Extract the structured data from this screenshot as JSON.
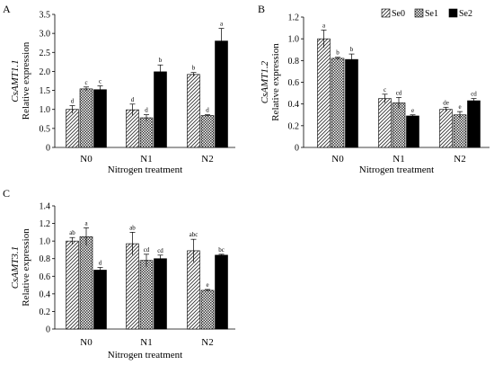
{
  "legend": {
    "items": [
      "Se0",
      "Se1",
      "Se2"
    ]
  },
  "chart_data": [
    {
      "panel": "A",
      "type": "bar",
      "ylabel_gene": "CsAMT1.1",
      "ylabel": "Relative expression",
      "xlabel": "Nitrogen treatment",
      "categories": [
        "N0",
        "N1",
        "N2"
      ],
      "ylim": [
        0,
        3.5
      ],
      "yticks": [
        "0",
        "0.5",
        "1.0",
        "1.5",
        "2.0",
        "2.5",
        "3.0",
        "3.5"
      ],
      "series": [
        {
          "name": "Se0",
          "values": [
            1.0,
            0.99,
            1.92
          ],
          "errors": [
            0.1,
            0.15,
            0.05
          ],
          "letters": [
            "d",
            "d",
            "b"
          ]
        },
        {
          "name": "Se1",
          "values": [
            1.54,
            0.78,
            0.84
          ],
          "errors": [
            0.05,
            0.08,
            0.02
          ],
          "letters": [
            "c",
            "d",
            "d"
          ]
        },
        {
          "name": "Se2",
          "values": [
            1.52,
            1.99,
            2.8
          ],
          "errors": [
            0.1,
            0.18,
            0.33
          ],
          "letters": [
            "c",
            "b",
            "a"
          ]
        }
      ]
    },
    {
      "panel": "B",
      "type": "bar",
      "ylabel_gene": "CsAMT1.2",
      "ylabel": "Relative expression",
      "xlabel": "Nitrogen treatment",
      "categories": [
        "N0",
        "N1",
        "N2"
      ],
      "ylim": [
        0,
        1.2
      ],
      "yticks": [
        "0",
        "0.2",
        "0.4",
        "0.6",
        "0.8",
        "1.0",
        "1.2"
      ],
      "series": [
        {
          "name": "Se0",
          "values": [
            1.0,
            0.45,
            0.35
          ],
          "errors": [
            0.08,
            0.04,
            0.02
          ],
          "letters": [
            "a",
            "c",
            "de"
          ]
        },
        {
          "name": "Se1",
          "values": [
            0.82,
            0.41,
            0.3
          ],
          "errors": [
            0.01,
            0.05,
            0.03
          ],
          "letters": [
            "b",
            "cd",
            "e"
          ]
        },
        {
          "name": "Se2",
          "values": [
            0.81,
            0.29,
            0.43
          ],
          "errors": [
            0.05,
            0.01,
            0.02
          ],
          "letters": [
            "b",
            "e",
            "cd"
          ]
        }
      ]
    },
    {
      "panel": "C",
      "type": "bar",
      "ylabel_gene": "CsAMT3.1",
      "ylabel": "Relative expression",
      "xlabel": "Nitrogen treatment",
      "categories": [
        "N0",
        "N1",
        "N2"
      ],
      "ylim": [
        0,
        1.4
      ],
      "yticks": [
        "0",
        "0.2",
        "0.4",
        "0.6",
        "0.8",
        "1.0",
        "1.2",
        "1.4"
      ],
      "series": [
        {
          "name": "Se0",
          "values": [
            1.0,
            0.97,
            0.89
          ],
          "errors": [
            0.04,
            0.13,
            0.13
          ],
          "letters": [
            "ab",
            "ab",
            "abc"
          ]
        },
        {
          "name": "Se1",
          "values": [
            1.05,
            0.78,
            0.44
          ],
          "errors": [
            0.1,
            0.07,
            0.01
          ],
          "letters": [
            "a",
            "cd",
            "e"
          ]
        },
        {
          "name": "Se2",
          "values": [
            0.67,
            0.8,
            0.84
          ],
          "errors": [
            0.03,
            0.04,
            0.01
          ],
          "letters": [
            "d",
            "cd",
            "bc"
          ]
        }
      ]
    }
  ]
}
